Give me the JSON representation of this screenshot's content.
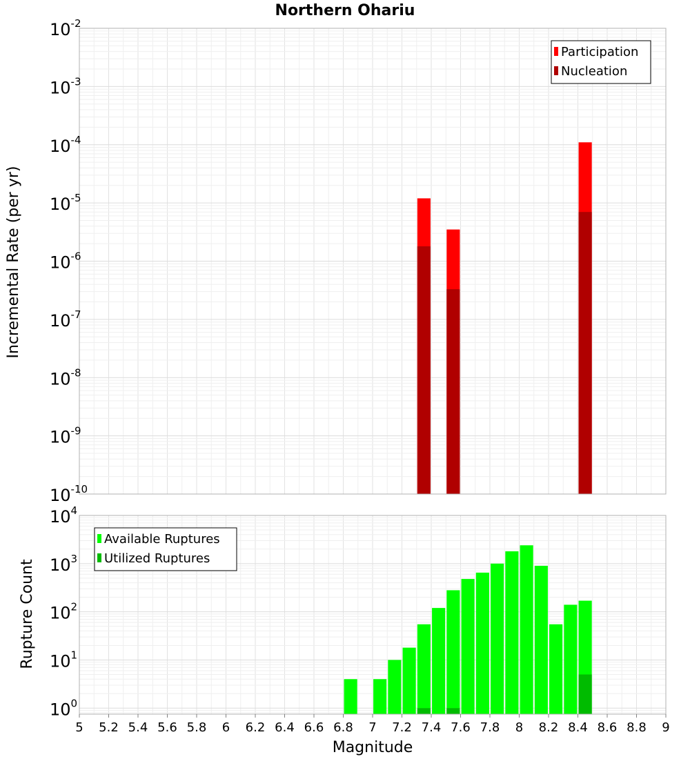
{
  "chart_data": [
    {
      "type": "bar",
      "title": "Northern Ohariu",
      "xlabel": "",
      "ylabel": "Incremental Rate (per yr)",
      "yscale": "log",
      "ylim": [
        1e-10,
        0.01
      ],
      "xlim": [
        5,
        9
      ],
      "yticks": [
        {
          "base": "10",
          "exp": "-10"
        },
        {
          "base": "10",
          "exp": "-9"
        },
        {
          "base": "10",
          "exp": "-8"
        },
        {
          "base": "10",
          "exp": "-7"
        },
        {
          "base": "10",
          "exp": "-6"
        },
        {
          "base": "10",
          "exp": "-5"
        },
        {
          "base": "10",
          "exp": "-4"
        },
        {
          "base": "10",
          "exp": "-3"
        },
        {
          "base": "10",
          "exp": "-2"
        }
      ],
      "legend_position": "top-right",
      "series": [
        {
          "name": "Participation",
          "color": "#ff0000",
          "x": [
            7.35,
            7.55,
            8.45
          ],
          "values": [
            1.2e-05,
            3.5e-06,
            0.00011
          ]
        },
        {
          "name": "Nucleation",
          "color": "#b00000",
          "x": [
            7.35,
            7.55,
            8.45
          ],
          "values": [
            1.8e-06,
            3.3e-07,
            7e-06
          ]
        }
      ]
    },
    {
      "type": "bar",
      "title": "",
      "xlabel": "Magnitude",
      "ylabel": "Rupture Count",
      "yscale": "log",
      "ylim": [
        0.75,
        10000
      ],
      "xlim": [
        5,
        9
      ],
      "yticks": [
        {
          "base": "10",
          "exp": "0"
        },
        {
          "base": "10",
          "exp": "1"
        },
        {
          "base": "10",
          "exp": "2"
        },
        {
          "base": "10",
          "exp": "3"
        },
        {
          "base": "10",
          "exp": "4"
        }
      ],
      "xticks": [
        "5",
        "5.2",
        "5.4",
        "5.6",
        "5.8",
        "6",
        "6.2",
        "6.4",
        "6.6",
        "6.8",
        "7",
        "7.2",
        "7.4",
        "7.6",
        "7.8",
        "8",
        "8.2",
        "8.4",
        "8.6",
        "8.8",
        "9"
      ],
      "legend_position": "top-left",
      "series": [
        {
          "name": "Available Ruptures",
          "color": "#00ff00",
          "x": [
            6.85,
            7.05,
            7.15,
            7.25,
            7.35,
            7.45,
            7.55,
            7.65,
            7.75,
            7.85,
            7.95,
            8.05,
            8.15,
            8.25,
            8.35,
            8.45
          ],
          "values": [
            4,
            4,
            10,
            18,
            55,
            120,
            280,
            480,
            650,
            1000,
            1800,
            2400,
            900,
            55,
            140,
            170
          ]
        },
        {
          "name": "Utilized Ruptures",
          "color": "#00bb00",
          "x": [
            7.35,
            7.55,
            8.45
          ],
          "values": [
            1,
            1,
            5
          ]
        }
      ]
    }
  ]
}
